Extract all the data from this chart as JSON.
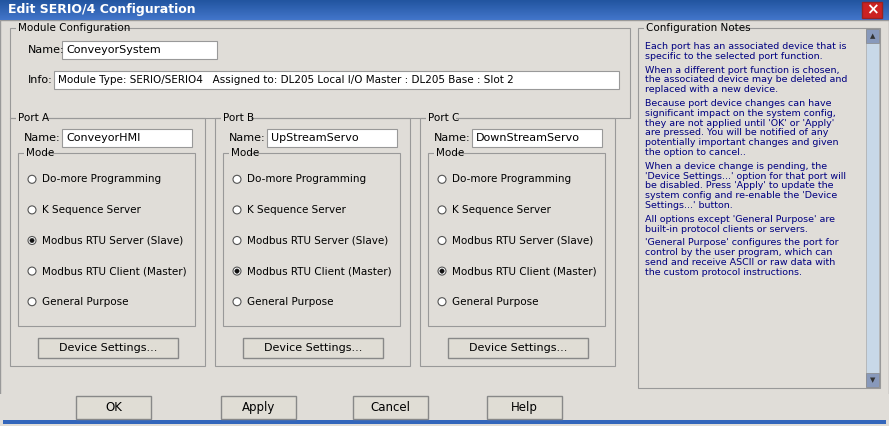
{
  "title": "Edit SERIO/4 Configuration",
  "title_bar_color": "#2255a0",
  "title_bar_gradient_end": "#4477cc",
  "title_bar_text_color": "#ffffff",
  "dialog_bg": "#e0ddd8",
  "close_btn_color": "#cc3333",
  "module_config_label": "Module Configuration",
  "name_label": "Name:",
  "name_value": "ConveyorSystem",
  "info_label": "Info:",
  "info_value": "Module Type: SERIO/SERIO4   Assigned to: DL205 Local I/O Master : DL205 Base : Slot 2",
  "ports": [
    {
      "label": "Port A",
      "name": "ConveyorHMI",
      "modes": [
        "Do-more Programming",
        "K Sequence Server",
        "Modbus RTU Server (Slave)",
        "Modbus RTU Client (Master)",
        "General Purpose"
      ],
      "selected": 2
    },
    {
      "label": "Port B",
      "name": "UpStreamServo",
      "modes": [
        "Do-more Programming",
        "K Sequence Server",
        "Modbus RTU Server (Slave)",
        "Modbus RTU Client (Master)",
        "General Purpose"
      ],
      "selected": 3
    },
    {
      "label": "Port C",
      "name": "DownStreamServo",
      "modes": [
        "Do-more Programming",
        "K Sequence Server",
        "Modbus RTU Server (Slave)",
        "Modbus RTU Client (Master)",
        "General Purpose"
      ],
      "selected": 3
    }
  ],
  "config_notes_label": "Configuration Notes",
  "config_notes": [
    "Each port has an associated device that is\nspecific to the selected port function.",
    "When a different port function is chosen,\nthe associated device may be deleted and\nreplaced with a new device.",
    "Because port device changes can have\nsignificant impact on the system config,\nthey are not applied until 'OK' or 'Apply'\nare pressed. You will be notified of any\npotentially important changes and given\nthe option to cancel..",
    "When a device change is pending, the\n'Device Settings...' option for that port will\nbe disabled. Press 'Apply' to update the\nsystem config and re-enable the 'Device\nSettings...' button.",
    "All options except 'General Purpose' are\nbuilt-in protocol clients or servers.",
    "'General Purpose' configures the port for\ncontrol by the user program, which can\nsend and receive ASCII or raw data with\nthe custom protocol instructions."
  ],
  "buttons": [
    "OK",
    "Apply",
    "Cancel",
    "Help"
  ],
  "device_settings_btn": "Device Settings...",
  "text_color": "#000000",
  "notes_text_color": "#000080",
  "frame_color": "#999999",
  "input_bg": "#ffffff",
  "btn_bg": "#e0ddd5",
  "scrollbar_track": "#c8d8e8",
  "scrollbar_thumb": "#8899bb"
}
